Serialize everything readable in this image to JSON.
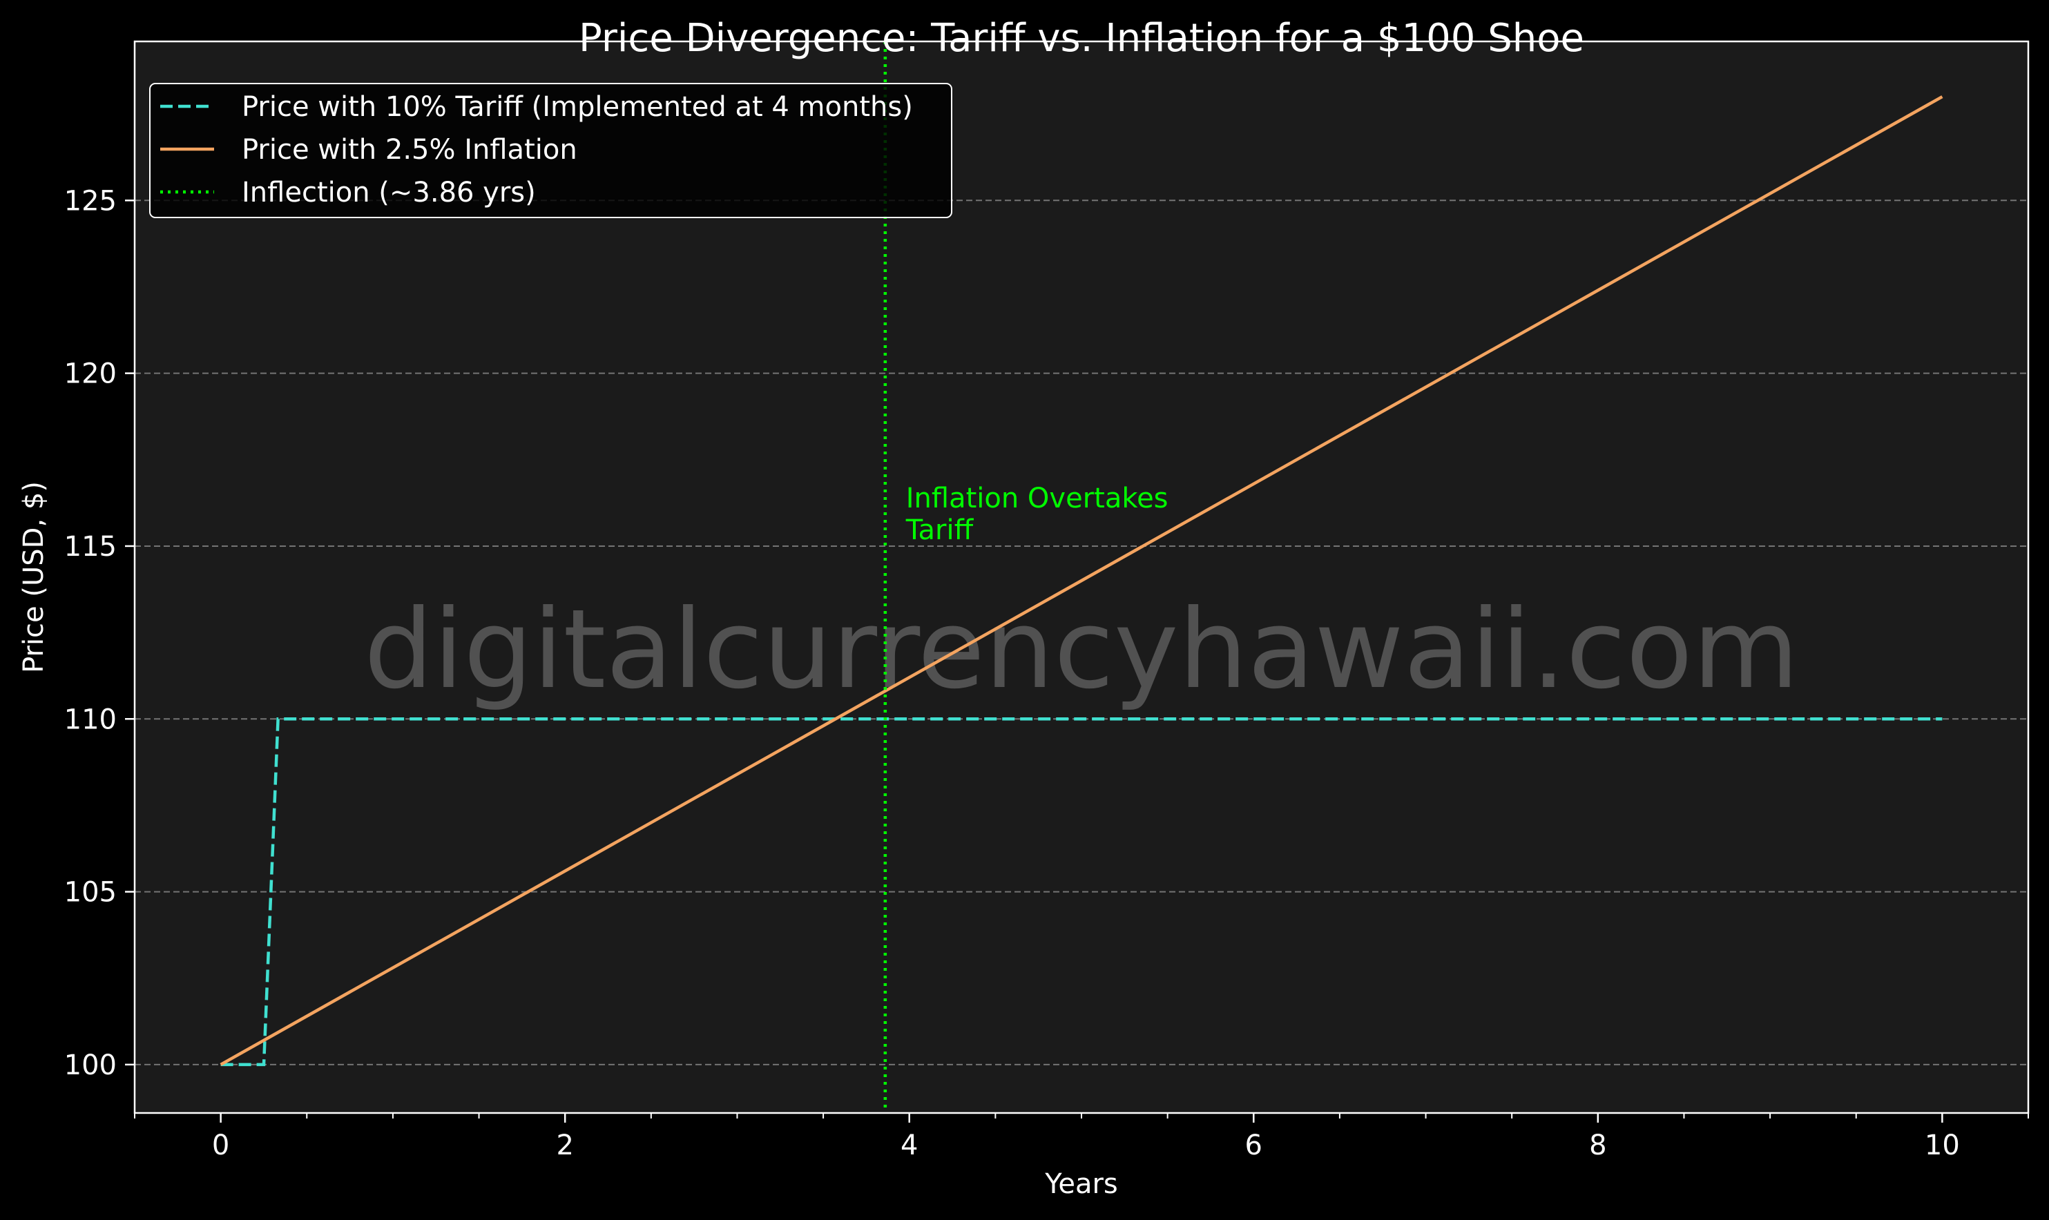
{
  "chart_data": {
    "type": "line",
    "title": "Price Divergence: Tariff vs. Inflation for a $100 Shoe",
    "xlabel": "Years",
    "ylabel": "Price (USD, $)",
    "xlim": [
      -0.5,
      10.5
    ],
    "ylim": [
      98.6,
      129.6
    ],
    "xticks": [
      0,
      2,
      4,
      6,
      8,
      10
    ],
    "xticks_minor": [
      -0.5,
      0.5,
      1,
      1.5,
      2.5,
      3,
      3.5,
      4.5,
      5,
      5.5,
      6.5,
      7,
      7.5,
      8.5,
      9,
      9.5,
      10.5
    ],
    "yticks": [
      100,
      105,
      110,
      115,
      120,
      125
    ],
    "grid": "y-dashed",
    "legend_position": "top-left",
    "background": "#1b1b1b",
    "series": [
      {
        "name": "Price with 10% Tariff (Implemented at 4 months)",
        "color": "#40e0d0",
        "style": "dashed",
        "x": [
          0,
          0.25,
          0.333,
          10
        ],
        "y": [
          100,
          100,
          110,
          110
        ]
      },
      {
        "name": "Price with 2.5% Inflation",
        "color": "#f4a460",
        "style": "solid",
        "x": [
          0,
          10
        ],
        "y": [
          100,
          128
        ]
      }
    ],
    "vlines": [
      {
        "name": "Inflection (~3.86 yrs)",
        "x": 3.86,
        "color": "#00ff00",
        "style": "dotted"
      }
    ],
    "annotations": [
      {
        "lines": [
          "Inflation Overtakes",
          "Tariff"
        ],
        "x": 3.98,
        "y": 115.4,
        "color": "#00ff00"
      }
    ],
    "watermark": "digitalcurrencyhawaii.com"
  }
}
